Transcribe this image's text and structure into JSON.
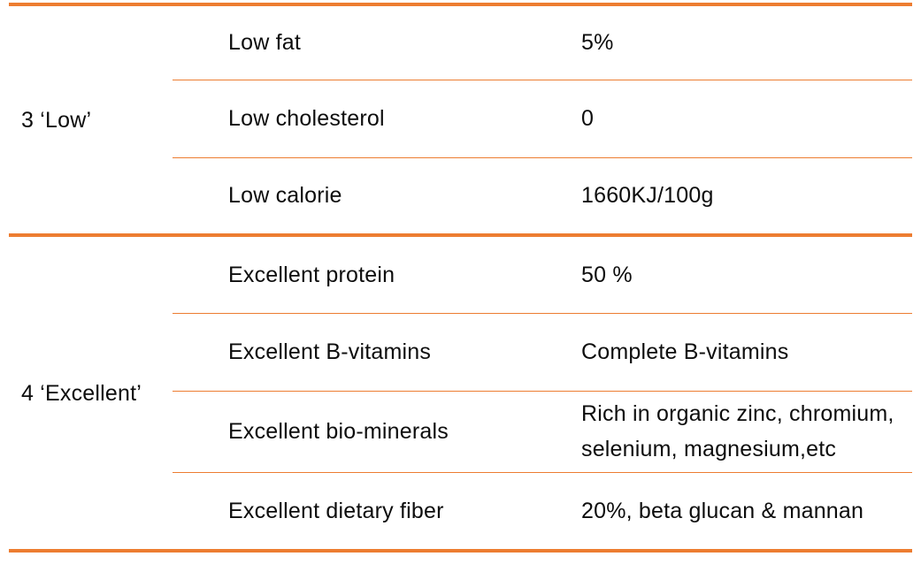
{
  "table": {
    "accent_color": "#ED7D31",
    "text_color": "#0d0d0d",
    "groups": [
      {
        "label": "3 ‘Low’",
        "rows": [
          {
            "feature": "Low fat",
            "value": "5%"
          },
          {
            "feature": "Low cholesterol",
            "value": "0"
          },
          {
            "feature": "Low calorie",
            "value": "1660KJ/100g"
          }
        ]
      },
      {
        "label": "4 ‘Excellent’",
        "rows": [
          {
            "feature": "Excellent protein",
            "value": "50 %"
          },
          {
            "feature": "Excellent B-vitamins",
            "value": "Complete B-vitamins"
          },
          {
            "feature": "Excellent bio-minerals",
            "value": "Rich in organic zinc, chromium, selenium, magnesium,etc"
          },
          {
            "feature": "Excellent dietary fiber",
            "value": "20%, beta glucan & mannan"
          }
        ]
      }
    ]
  }
}
